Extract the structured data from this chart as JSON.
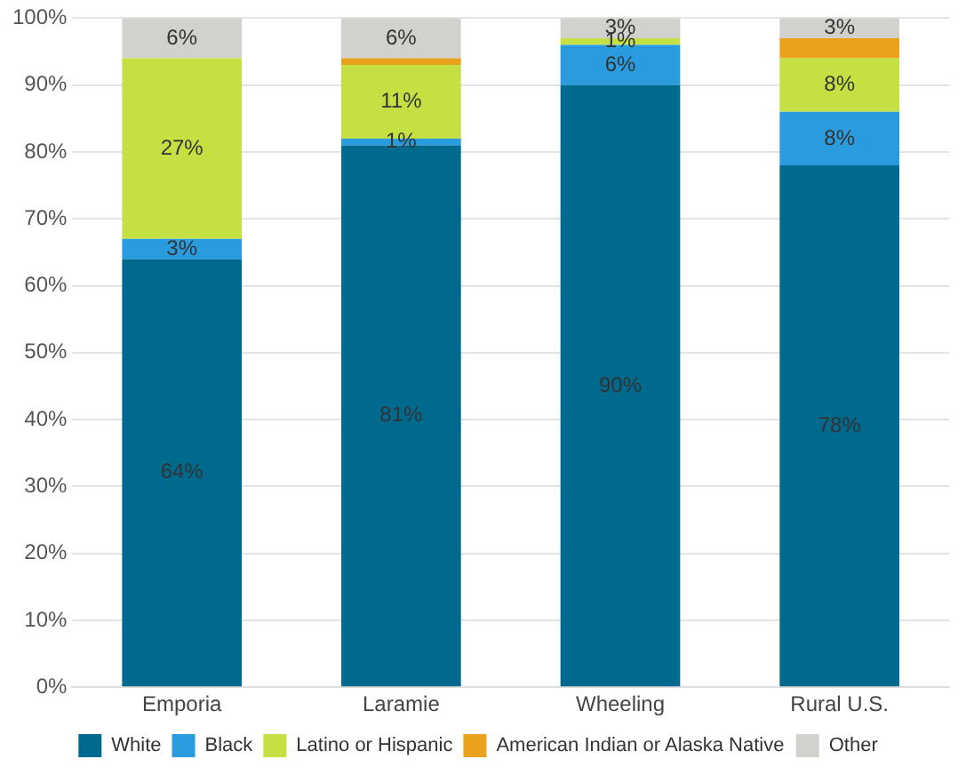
{
  "chart_data": {
    "type": "bar",
    "stacked": true,
    "categories": [
      "Emporia",
      "Laramie",
      "Wheeling",
      "Rural U.S."
    ],
    "series": [
      {
        "name": "White",
        "color": "#006a8e",
        "values": [
          64,
          81,
          90,
          78
        ],
        "value_labels": [
          "64%",
          "81%",
          "90%",
          "78%"
        ]
      },
      {
        "name": "Black",
        "color": "#2b9be0",
        "values": [
          3,
          1,
          6,
          8
        ],
        "value_labels": [
          "3%",
          "1%",
          "6%",
          "8%"
        ]
      },
      {
        "name": "Latino or Hispanic",
        "color": "#c5e043",
        "values": [
          27,
          11,
          1,
          8
        ],
        "value_labels": [
          "27%",
          "11%",
          "1%",
          "8%"
        ]
      },
      {
        "name": "American Indian or Alaska Native",
        "color": "#eaa21c",
        "values": [
          0,
          1,
          0,
          3
        ],
        "value_labels": [
          null,
          null,
          null,
          null
        ]
      },
      {
        "name": "Other",
        "color": "#d3d1cd",
        "values": [
          6,
          6,
          3,
          3
        ],
        "value_labels": [
          "6%",
          "6%",
          "3%",
          "3%"
        ]
      }
    ],
    "ylim": [
      0,
      100
    ],
    "yticks": [
      {
        "value": 0,
        "label": "0%"
      },
      {
        "value": 10,
        "label": "10%"
      },
      {
        "value": 20,
        "label": "20%"
      },
      {
        "value": 30,
        "label": "30%"
      },
      {
        "value": 40,
        "label": "40%"
      },
      {
        "value": 50,
        "label": "50%"
      },
      {
        "value": 60,
        "label": "60%"
      },
      {
        "value": 70,
        "label": "70%"
      },
      {
        "value": 80,
        "label": "80%"
      },
      {
        "value": 90,
        "label": "90%"
      },
      {
        "value": 100,
        "label": "100%"
      }
    ],
    "grid": "y",
    "legend": "bottom"
  }
}
